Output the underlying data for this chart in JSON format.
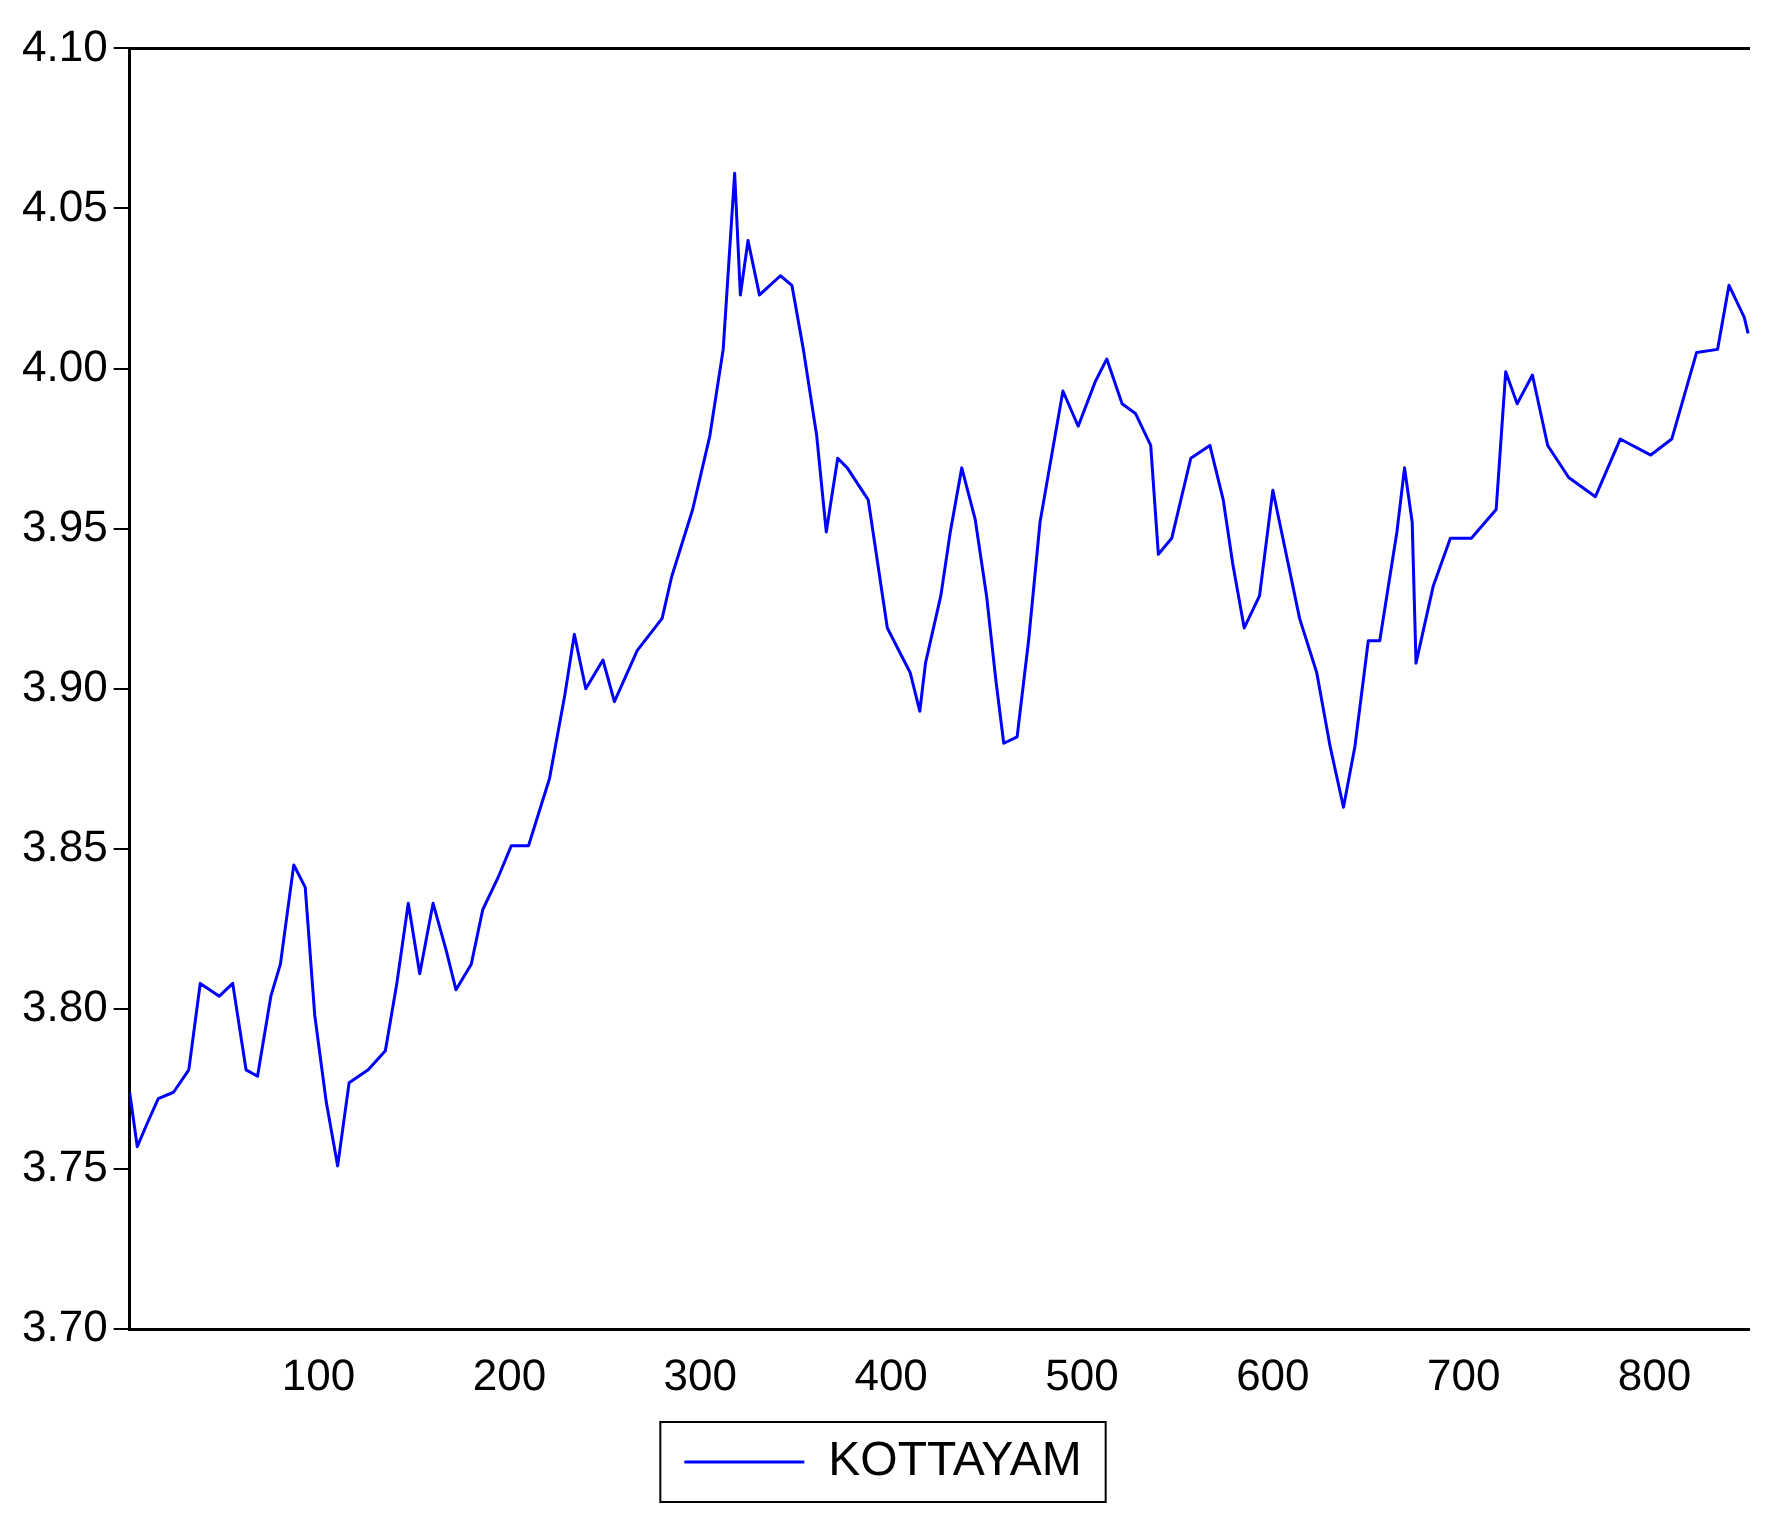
{
  "chart_data": {
    "type": "line",
    "x": [
      1,
      5,
      10,
      16,
      24,
      32,
      38,
      48,
      55,
      62,
      68,
      75,
      80,
      87,
      93,
      98,
      104,
      110,
      116,
      126,
      135,
      141,
      147,
      153,
      160,
      167,
      172,
      180,
      186,
      194,
      201,
      210,
      221,
      229,
      234,
      240,
      249,
      255,
      267,
      280,
      285,
      296,
      305,
      312,
      318,
      321,
      325,
      331,
      342,
      348,
      354,
      361,
      366,
      372,
      377,
      388,
      398,
      410,
      415,
      418,
      426,
      431,
      437,
      444,
      450,
      455,
      459,
      466,
      472,
      478,
      485,
      490,
      498,
      507,
      513,
      521,
      528,
      536,
      540,
      547,
      557,
      567,
      574,
      579,
      585,
      593,
      600,
      607,
      614,
      623,
      630,
      637,
      643,
      650,
      656,
      665,
      669,
      673,
      675,
      684,
      693,
      704,
      717,
      722,
      728,
      736,
      744,
      755,
      769,
      782,
      798,
      809,
      822,
      833,
      839,
      847,
      849
    ],
    "series": [
      {
        "name": "KOTTAYAM",
        "color": "#0000ff",
        "values": [
          3.774,
          3.757,
          3.764,
          3.772,
          3.774,
          3.781,
          3.808,
          3.804,
          3.808,
          3.781,
          3.779,
          3.804,
          3.814,
          3.845,
          3.838,
          3.798,
          3.771,
          3.751,
          3.777,
          3.781,
          3.787,
          3.808,
          3.833,
          3.811,
          3.833,
          3.818,
          3.806,
          3.814,
          3.831,
          3.841,
          3.851,
          3.851,
          3.872,
          3.898,
          3.917,
          3.9,
          3.909,
          3.896,
          3.912,
          3.922,
          3.935,
          3.956,
          3.979,
          4.006,
          4.061,
          4.023,
          4.04,
          4.023,
          4.029,
          4.026,
          4.006,
          3.979,
          3.949,
          3.972,
          3.969,
          3.959,
          3.919,
          3.905,
          3.893,
          3.908,
          3.929,
          3.949,
          3.969,
          3.953,
          3.929,
          3.902,
          3.883,
          3.885,
          3.915,
          3.952,
          3.976,
          3.993,
          3.982,
          3.996,
          4.003,
          3.989,
          3.986,
          3.976,
          3.942,
          3.947,
          3.972,
          3.976,
          3.959,
          3.939,
          3.919,
          3.929,
          3.962,
          3.942,
          3.922,
          3.905,
          3.882,
          3.863,
          3.882,
          3.915,
          3.915,
          3.949,
          3.969,
          3.952,
          3.908,
          3.932,
          3.947,
          3.947,
          3.956,
          3.999,
          3.989,
          3.998,
          3.976,
          3.966,
          3.96,
          3.978,
          3.973,
          3.978,
          4.005,
          4.006,
          4.026,
          4.016,
          4.011
        ]
      }
    ],
    "xlim": [
      1,
      850
    ],
    "xticks": [
      100,
      200,
      300,
      400,
      500,
      600,
      700,
      800
    ],
    "ylim": [
      3.7,
      4.1
    ],
    "yticks": [
      {
        "value": 3.7,
        "label": "3.70"
      },
      3.75,
      {
        "value": 3.8,
        "label": "3.80"
      },
      3.85,
      {
        "value": 3.9,
        "label": "3.90"
      },
      3.95,
      {
        "value": 4.0,
        "label": "4.00"
      },
      4.05,
      {
        "value": 4.1,
        "label": "4.10"
      }
    ],
    "grid": false,
    "legend": "bottom",
    "line_style": "solid",
    "marker": "none"
  }
}
